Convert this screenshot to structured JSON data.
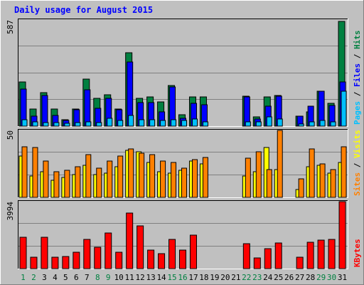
{
  "chart_data": {
    "type": "bar",
    "title": "Daily usage for August 2015",
    "days": [
      "1",
      "2",
      "3",
      "4",
      "5",
      "6",
      "7",
      "8",
      "9",
      "10",
      "11",
      "12",
      "13",
      "14",
      "15",
      "16",
      "17",
      "18",
      "19",
      "20",
      "21",
      "22",
      "23",
      "24",
      "25",
      "26",
      "27",
      "28",
      "29",
      "30",
      "31"
    ],
    "weekend_days": [
      "1",
      "2",
      "8",
      "9",
      "15",
      "16",
      "22",
      "23",
      "29",
      "30"
    ],
    "panels": [
      {
        "id": "hits",
        "ymax_label": "587",
        "ymax": 587,
        "labels": [
          {
            "text": "Pages",
            "color": "#00c0ff"
          },
          {
            "text": "Files",
            "color": "#0000ff"
          },
          {
            "text": "Hits",
            "color": "#008040"
          }
        ],
        "series": [
          {
            "name": "Hits",
            "color": "#008040",
            "values": [
              245,
              95,
              185,
              95,
              35,
              95,
              260,
              155,
              175,
              95,
              405,
              155,
              160,
              135,
              225,
              65,
              160,
              160,
              0,
              0,
              0,
              165,
              50,
              160,
              170,
              0,
              55,
              80,
              195,
              125,
              580
            ]
          },
          {
            "name": "Files",
            "color": "#0000ff",
            "values": [
              205,
              55,
              170,
              60,
              30,
              90,
              200,
              100,
              155,
              90,
              355,
              130,
              130,
              80,
              215,
              45,
              125,
              120,
              0,
              0,
              0,
              160,
              40,
              110,
              165,
              0,
              55,
              110,
              195,
              115,
              245
            ]
          },
          {
            "name": "Pages",
            "color": "#00c0ff",
            "values": [
              35,
              25,
              20,
              20,
              15,
              20,
              25,
              20,
              45,
              30,
              60,
              35,
              35,
              30,
              35,
              30,
              40,
              25,
              0,
              0,
              0,
              25,
              25,
              50,
              40,
              0,
              10,
              25,
              30,
              25,
              195
            ]
          }
        ]
      },
      {
        "id": "visits",
        "ymax_label": "50",
        "ymax": 50,
        "labels": [
          {
            "text": "Sites",
            "color": "#ff8000"
          },
          {
            "text": "Visits",
            "color": "#ffff00"
          }
        ],
        "series": [
          {
            "name": "Visits",
            "color": "#ffff00",
            "values": [
              31,
              16,
              19,
              13,
              15,
              17,
              24,
              17,
              18,
              23,
              35,
              34,
              26,
              19,
              18,
              20,
              27,
              25,
              0,
              0,
              0,
              16,
              19,
              37,
              21,
              0,
              6,
              23,
              24,
              18,
              26
            ]
          },
          {
            "name": "Sites",
            "color": "#ff8000",
            "values": [
              38,
              37,
              27,
              19,
              20,
              23,
              32,
              22,
              27,
              31,
              36,
              33,
              32,
              27,
              26,
              22,
              28,
              30,
              0,
              0,
              0,
              29,
              34,
              21,
              50,
              0,
              14,
              36,
              25,
              21,
              38
            ]
          }
        ]
      },
      {
        "id": "kbytes",
        "ymax_label": "3994",
        "ymax": 3994,
        "labels": [
          {
            "text": "KBytes",
            "color": "#ff0000"
          }
        ],
        "series": [
          {
            "name": "KBytes",
            "color": "#ff0000",
            "values": [
              1850,
              670,
              1850,
              690,
              710,
              970,
              1760,
              1270,
              2140,
              970,
              3310,
              2560,
              1110,
              910,
              1760,
              1110,
              1990,
              0,
              0,
              0,
              0,
              1480,
              630,
              1190,
              1540,
              0,
              690,
              1570,
              1710,
              1760,
              3994
            ]
          }
        ]
      }
    ]
  }
}
